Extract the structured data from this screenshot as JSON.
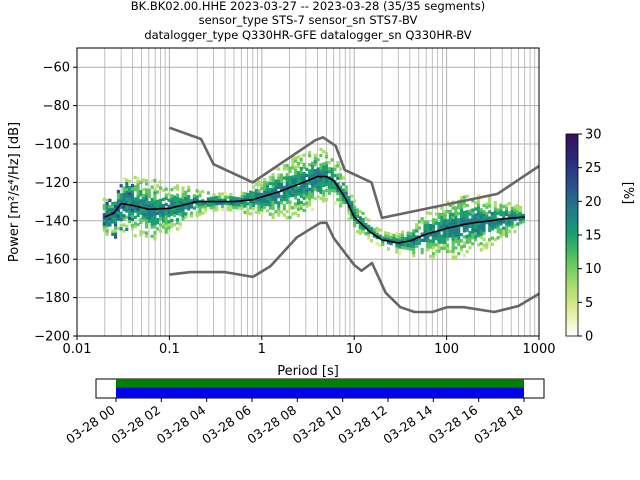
{
  "header": {
    "line1": "BK.BK02.00.HHE   2023-03-27 -- 2023-03-28  (35/35 segments)",
    "line2": "sensor_type STS-7 sensor_sn STS7-BV",
    "line3": "datalogger_type Q330HR-GFE datalogger_sn Q330HR-BV"
  },
  "chart_data": {
    "type": "heatmap",
    "title": "BK.BK02.00.HHE   2023-03-27 -- 2023-03-28  (35/35 segments)",
    "xlabel": "Period [s]",
    "ylabel": "Power [m²/s⁴/Hz] [dB]",
    "xscale": "log",
    "xlim": [
      0.01,
      1000
    ],
    "ylim": [
      -200,
      -50
    ],
    "x_ticks": [
      0.01,
      0.1,
      1,
      10,
      100,
      1000
    ],
    "x_tick_labels": [
      "0.01",
      "0.1",
      "1",
      "10",
      "100",
      "1000"
    ],
    "y_ticks": [
      -200,
      -180,
      -160,
      -140,
      -120,
      -100,
      -80,
      -60
    ],
    "y_tick_labels": [
      "−200",
      "−180",
      "−160",
      "−140",
      "−120",
      "−100",
      "−80",
      "−60"
    ],
    "grid": true,
    "colorbar": {
      "label": "[%]",
      "range": [
        0,
        30
      ],
      "ticks": [
        0,
        5,
        10,
        15,
        20,
        25,
        30
      ],
      "tick_labels": [
        "0",
        "5",
        "10",
        "15",
        "20",
        "25",
        "30"
      ],
      "colors": [
        "#ffffff",
        "#e0ec9a",
        "#a8dc6c",
        "#5cc45e",
        "#18a070",
        "#227a88",
        "#2a4f8c",
        "#2a2a7a",
        "#3a0e5a"
      ]
    },
    "series": [
      {
        "name": "mean",
        "color": "#000000",
        "x": [
          0.02,
          0.025,
          0.03,
          0.04,
          0.06,
          0.1,
          0.2,
          0.3,
          0.5,
          0.8,
          1.5,
          2.5,
          4,
          5,
          6,
          8,
          10,
          15,
          20,
          30,
          40,
          60,
          100,
          150,
          200,
          300,
          400,
          700
        ],
        "y": [
          -138,
          -136,
          -131,
          -132,
          -134,
          -133.5,
          -130,
          -130,
          -130,
          -129,
          -125,
          -121,
          -117,
          -117,
          -119,
          -128,
          -138,
          -146,
          -150,
          -151.5,
          -150.5,
          -147,
          -144,
          -142,
          -141,
          -140,
          -139,
          -138
        ]
      },
      {
        "name": "NHNM",
        "color": "#666666",
        "x": [
          0.1,
          0.22,
          0.3,
          0.8,
          3.8,
          4.6,
          6.3,
          7.9,
          15.4,
          20,
          354.8,
          1000
        ],
        "y": [
          -91.5,
          -97.4,
          -110.5,
          -120,
          -98,
          -96.5,
          -101,
          -113.5,
          -120,
          -138.5,
          -126,
          -111.5
        ]
      },
      {
        "name": "NLNM",
        "color": "#666666",
        "x": [
          0.1,
          0.17,
          0.4,
          0.8,
          1.24,
          2.4,
          4.3,
          5,
          6,
          10,
          12,
          15.6,
          21.9,
          31.6,
          45,
          70,
          101,
          154,
          328,
          600,
          1000
        ],
        "y": [
          -168,
          -166.7,
          -166.7,
          -169.2,
          -163.7,
          -148.6,
          -141.1,
          -141,
          -149,
          -163,
          -166,
          -162,
          -177.5,
          -185,
          -187.5,
          -187.5,
          -185,
          -185,
          -187.5,
          -184.4,
          -178
        ]
      }
    ]
  },
  "timeline": {
    "tick_labels": [
      "03-28 00",
      "03-28 02",
      "03-28 04",
      "03-28 06",
      "03-28 08",
      "03-28 10",
      "03-28 12",
      "03-28 14",
      "03-28 16",
      "03-28 18"
    ],
    "data_color": "#0000ee",
    "gap_color": "#008000"
  }
}
